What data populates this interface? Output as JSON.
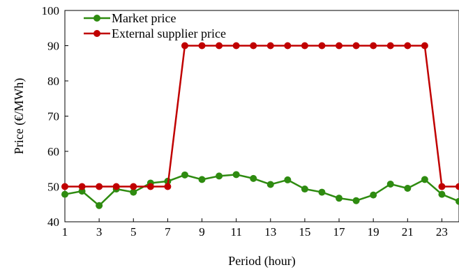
{
  "chart_data": {
    "type": "line",
    "x": [
      1,
      2,
      3,
      4,
      5,
      6,
      7,
      8,
      9,
      10,
      11,
      12,
      13,
      14,
      15,
      16,
      17,
      18,
      19,
      20,
      21,
      22,
      23,
      24
    ],
    "series": [
      {
        "name": "Market price",
        "color": "#2e8b10",
        "values": [
          47.8,
          48.7,
          44.6,
          49.3,
          48.4,
          51.0,
          51.5,
          53.3,
          52.0,
          53.0,
          53.4,
          52.3,
          50.6,
          51.9,
          49.3,
          48.4,
          46.7,
          46.0,
          47.6,
          50.7,
          49.5,
          52.0,
          47.8,
          45.8
        ]
      },
      {
        "name": "External supplier price",
        "color": "#c00000",
        "values": [
          50,
          50,
          50,
          50,
          50,
          50,
          50,
          90,
          90,
          90,
          90,
          90,
          90,
          90,
          90,
          90,
          90,
          90,
          90,
          90,
          90,
          90,
          50,
          50
        ]
      }
    ],
    "xticks": [
      1,
      3,
      5,
      7,
      9,
      11,
      13,
      15,
      17,
      19,
      21,
      23
    ],
    "yticks": [
      40,
      50,
      60,
      70,
      80,
      90,
      100
    ],
    "xlabel": "Period (hour)",
    "ylabel": "Price (€/MWh)",
    "xlim": [
      1,
      24
    ],
    "ylim": [
      40,
      100
    ],
    "grid": false,
    "legend_position": "top-left"
  }
}
